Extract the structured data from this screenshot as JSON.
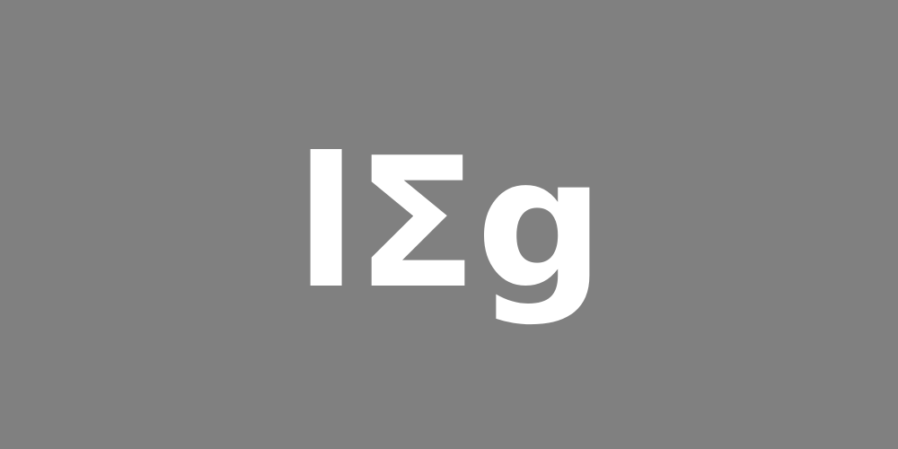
{
  "text": {
    "value": "lΣg"
  },
  "colors": {
    "background": "#808080",
    "text": "#ffffff"
  }
}
